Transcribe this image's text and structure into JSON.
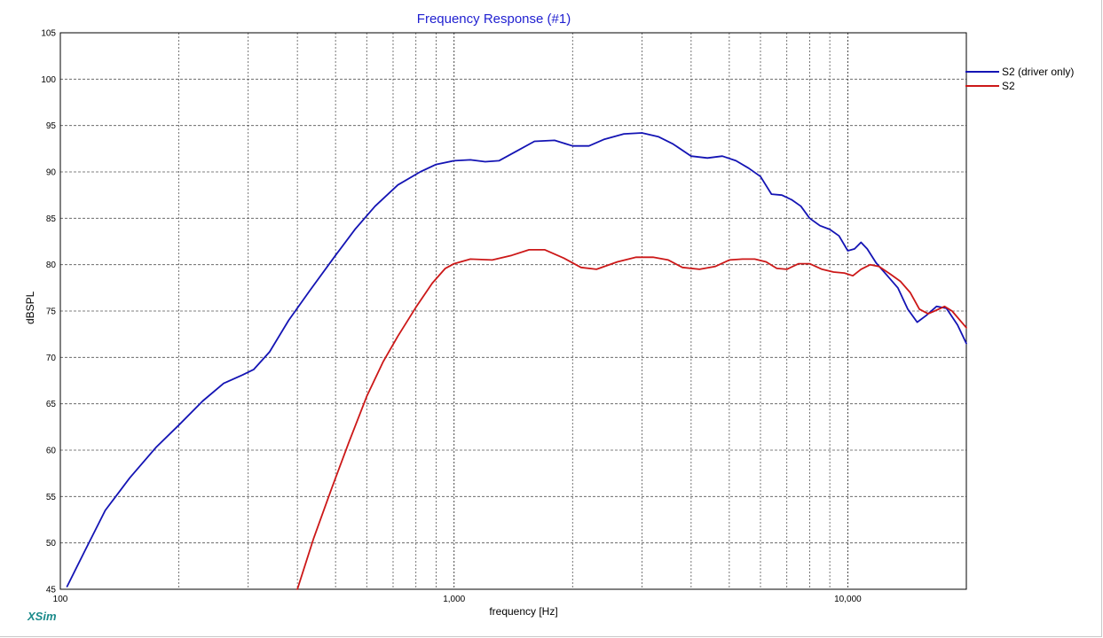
{
  "chart_data": {
    "type": "line",
    "title": "Frequency Response (#1)",
    "xlabel": "frequency [Hz]",
    "ylabel": "dBSPL",
    "xscale": "log",
    "xlim": [
      100,
      20000
    ],
    "ylim": [
      45,
      105
    ],
    "yticks": [
      45,
      50,
      55,
      60,
      65,
      70,
      75,
      80,
      85,
      90,
      95,
      100,
      105
    ],
    "xtick_labels": [
      {
        "x": 100,
        "label": "100"
      },
      {
        "x": 1000,
        "label": "1,000"
      },
      {
        "x": 10000,
        "label": "10,000"
      }
    ],
    "x_minor_gridlines": [
      200,
      300,
      400,
      500,
      600,
      700,
      800,
      900,
      2000,
      3000,
      4000,
      5000,
      6000,
      7000,
      8000,
      9000
    ],
    "grid": true,
    "legend": "top-right",
    "series": [
      {
        "name": "S2 (driver only)",
        "color": "#1414b4",
        "x": [
          104,
          115,
          130,
          150,
          175,
          200,
          230,
          260,
          290,
          310,
          340,
          380,
          430,
          500,
          560,
          630,
          720,
          820,
          900,
          1000,
          1100,
          1200,
          1300,
          1450,
          1600,
          1800,
          2000,
          2200,
          2400,
          2700,
          3000,
          3300,
          3600,
          4000,
          4400,
          4800,
          5200,
          5600,
          6000,
          6400,
          6800,
          7200,
          7600,
          8000,
          8500,
          9000,
          9500,
          10000,
          10400,
          10800,
          11200,
          11800,
          12600,
          13400,
          14200,
          15000,
          15800,
          16800,
          17800,
          19000,
          20000
        ],
        "y": [
          45.3,
          49,
          53.5,
          57,
          60.3,
          62.7,
          65.3,
          67.2,
          68.1,
          68.7,
          70.6,
          74,
          77.2,
          81,
          83.8,
          86.3,
          88.6,
          90,
          90.8,
          91.2,
          91.3,
          91.1,
          91.2,
          92.3,
          93.3,
          93.4,
          92.8,
          92.8,
          93.5,
          94.1,
          94.2,
          93.8,
          93,
          91.7,
          91.5,
          91.7,
          91.2,
          90.4,
          89.5,
          87.6,
          87.5,
          87,
          86.3,
          85,
          84.2,
          83.8,
          83.1,
          81.5,
          81.7,
          82.4,
          81.7,
          80.2,
          78.8,
          77.5,
          75.2,
          73.8,
          74.5,
          75.5,
          75.3,
          73.5,
          71.5
        ]
      },
      {
        "name": "S2",
        "color": "#cc1818",
        "x": [
          400,
          440,
          490,
          540,
          600,
          660,
          720,
          800,
          880,
          950,
          1000,
          1100,
          1250,
          1400,
          1550,
          1700,
          1900,
          2100,
          2300,
          2600,
          2900,
          3200,
          3500,
          3800,
          4200,
          4600,
          5000,
          5400,
          5800,
          6200,
          6600,
          7000,
          7500,
          8000,
          8600,
          9200,
          9800,
          10300,
          10800,
          11400,
          12000,
          12800,
          13600,
          14400,
          15200,
          16000,
          16800,
          17600,
          18400,
          20000
        ],
        "y": [
          45,
          50.5,
          56,
          60.8,
          65.8,
          69.5,
          72.3,
          75.4,
          78,
          79.6,
          80.1,
          80.6,
          80.5,
          81,
          81.6,
          81.6,
          80.7,
          79.7,
          79.5,
          80.3,
          80.8,
          80.8,
          80.5,
          79.7,
          79.5,
          79.8,
          80.5,
          80.6,
          80.6,
          80.3,
          79.6,
          79.5,
          80.1,
          80.1,
          79.5,
          79.2,
          79.1,
          78.8,
          79.5,
          80,
          79.8,
          79,
          78.2,
          77,
          75.2,
          74.7,
          75.1,
          75.5,
          75,
          73.2
        ]
      }
    ]
  },
  "footer": {
    "brand": "XSim"
  }
}
